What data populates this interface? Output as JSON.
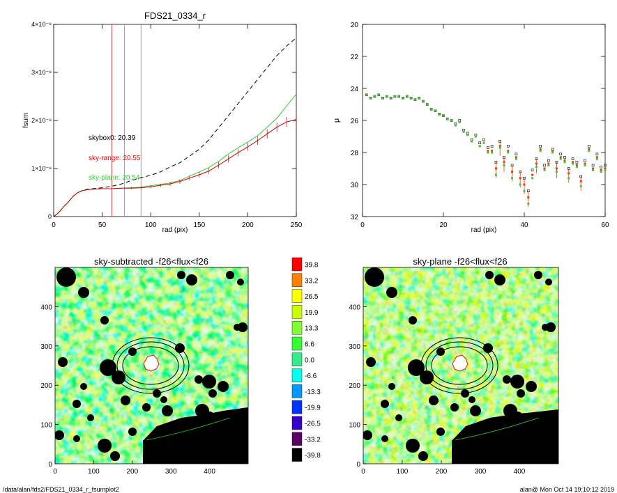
{
  "footer": {
    "path": "/data/alan/fds2/FDS21_0334_r_fsumplot2",
    "user_date": "alan@  Mon Oct 14 19:10:12 2019"
  },
  "chart_data": [
    {
      "type": "line",
      "title": "FDS21_0334_r",
      "xlabel": "rad (pix)",
      "ylabel": "fsum",
      "xlim": [
        0,
        250
      ],
      "ylim": [
        0,
        4e-08
      ],
      "xticks": [
        "0",
        "50",
        "100",
        "150",
        "200",
        "250"
      ],
      "yticks": [
        "0",
        "1×10⁻⁸",
        "2×10⁻⁸",
        "3×10⁻⁸",
        "4×10⁻⁸"
      ],
      "vlines": [
        {
          "x": 60,
          "color": "#ff0000"
        },
        {
          "x": 73,
          "color": "#8888aa"
        },
        {
          "x": 90,
          "color": "#888888"
        }
      ],
      "annotations": [
        {
          "text": "skybox0: 20.39",
          "color": "#000000"
        },
        {
          "text": "sky-range: 20.55",
          "color": "#ff0000"
        },
        {
          "text": "sky-plane: 20.54",
          "color": "#33cc33"
        }
      ],
      "x": [
        0,
        5,
        10,
        15,
        20,
        25,
        30,
        35,
        40,
        50,
        60,
        70,
        80,
        90,
        100,
        110,
        120,
        130,
        140,
        150,
        160,
        170,
        180,
        190,
        200,
        210,
        220,
        230,
        240,
        250
      ],
      "series": [
        {
          "color": "#000000",
          "dash": true,
          "values": [
            0,
            0.08,
            0.2,
            0.3,
            0.42,
            0.5,
            0.55,
            0.57,
            0.58,
            0.6,
            0.63,
            0.68,
            0.75,
            0.81,
            0.86,
            0.93,
            1.03,
            1.12,
            1.26,
            1.4,
            1.6,
            1.85,
            2.1,
            2.35,
            2.6,
            2.85,
            3.1,
            3.35,
            3.55,
            3.72
          ]
        },
        {
          "color": "#33cc33",
          "dash": false,
          "values": [
            0,
            0.08,
            0.2,
            0.3,
            0.42,
            0.5,
            0.54,
            0.56,
            0.57,
            0.58,
            0.58,
            0.59,
            0.6,
            0.61,
            0.64,
            0.67,
            0.7,
            0.75,
            0.84,
            0.93,
            1.02,
            1.15,
            1.3,
            1.43,
            1.55,
            1.68,
            1.86,
            2.05,
            2.3,
            2.55
          ]
        },
        {
          "color": "#cc0000",
          "dash": false,
          "values": [
            0,
            0.08,
            0.2,
            0.3,
            0.42,
            0.5,
            0.54,
            0.56,
            0.57,
            0.58,
            0.58,
            0.59,
            0.59,
            0.6,
            0.62,
            0.65,
            0.68,
            0.73,
            0.8,
            0.87,
            0.95,
            1.07,
            1.2,
            1.33,
            1.45,
            1.58,
            1.72,
            1.86,
            1.97,
            2.02
          ]
        }
      ]
    },
    {
      "type": "scatter",
      "xlabel": "rad (pix)",
      "ylabel": "μ",
      "xlim": [
        0,
        60
      ],
      "ylim": [
        32,
        20
      ],
      "xticks": [
        "0",
        "20",
        "40",
        "60"
      ],
      "yticks": [
        "20",
        "22",
        "24",
        "26",
        "28",
        "30",
        "32"
      ],
      "x": [
        1,
        2,
        3,
        4,
        5,
        6,
        7,
        8,
        9,
        10,
        11,
        12,
        13,
        14,
        15,
        16,
        17,
        18,
        19,
        20,
        21,
        22,
        23,
        24,
        25,
        26,
        27,
        28,
        29,
        30,
        31,
        32,
        33,
        34,
        35,
        36,
        37,
        38,
        39,
        40,
        41,
        42,
        43,
        44,
        45,
        46,
        47,
        48,
        49,
        50,
        51,
        52,
        53,
        54,
        55,
        56,
        57,
        58,
        59,
        60
      ],
      "series": [
        {
          "name": "black",
          "color": "#000000",
          "values": [
            24.4,
            24.6,
            24.5,
            24.4,
            24.6,
            24.5,
            24.6,
            24.5,
            24.5,
            24.6,
            24.5,
            24.6,
            24.7,
            24.6,
            24.8,
            25,
            25.3,
            25.4,
            25.6,
            25.7,
            25.9,
            26,
            26.2,
            26,
            26.6,
            26.8,
            27.2,
            26.9,
            27.4,
            27.2,
            27.7,
            27.6,
            28.6,
            27.3,
            28.3,
            27.6,
            28.8,
            28.1,
            29.2,
            29.6,
            30.4,
            29.1,
            28.4,
            27.6,
            28.8,
            28.5,
            27.8,
            28.6,
            28.1,
            28.3,
            29,
            28.4,
            28.6,
            29.5,
            28.5,
            27.6,
            28.8,
            28.1,
            28.9,
            28.8
          ]
        },
        {
          "name": "red",
          "color": "#ff3300",
          "values": [
            24.4,
            24.6,
            24.5,
            24.4,
            24.6,
            24.5,
            24.6,
            24.5,
            24.5,
            24.6,
            24.5,
            24.6,
            24.7,
            24.6,
            24.8,
            25,
            25.3,
            25.4,
            25.6,
            25.7,
            25.9,
            26,
            26.3,
            26.1,
            26.7,
            26.9,
            27.3,
            27,
            27.6,
            27.4,
            27.9,
            27.9,
            29,
            27.6,
            28.6,
            27.9,
            29.2,
            28.3,
            29.6,
            30,
            30.8,
            29.4,
            28.7,
            27.8,
            29,
            28.7,
            27.9,
            29,
            28.3,
            28.5,
            29.3,
            28.6,
            28.8,
            29.8,
            28.7,
            27.8,
            29,
            28.3,
            29.1,
            29
          ]
        },
        {
          "name": "green",
          "color": "#33cc33",
          "values": [
            24.4,
            24.6,
            24.5,
            24.4,
            24.6,
            24.5,
            24.6,
            24.5,
            24.5,
            24.6,
            24.5,
            24.6,
            24.7,
            24.6,
            24.8,
            25,
            25.3,
            25.4,
            25.6,
            25.7,
            25.9,
            26,
            26.3,
            26.1,
            26.7,
            26.9,
            27.3,
            27,
            27.6,
            27.4,
            28,
            28,
            29.4,
            27.7,
            28.8,
            28,
            29.6,
            28.4,
            30,
            30.4,
            31.2,
            29.6,
            28.9,
            27.9,
            29.1,
            28.8,
            28,
            29.2,
            28.4,
            28.6,
            29.6,
            28.7,
            28.9,
            30.1,
            28.8,
            27.9,
            29.1,
            28.4,
            29.2,
            29.1
          ]
        }
      ]
    },
    {
      "type": "heatmap",
      "title": "sky-subtracted -f26<flux<f26",
      "xlim": [
        0,
        500
      ],
      "ylim": [
        0,
        500
      ],
      "xticks": [
        "0",
        "100",
        "200",
        "300",
        "400"
      ],
      "yticks": [
        "0",
        "100",
        "200",
        "300",
        "400"
      ]
    },
    {
      "type": "heatmap",
      "title": "sky-plane -f26<flux<f26",
      "xlim": [
        0,
        500
      ],
      "ylim": [
        0,
        500
      ],
      "xticks": [
        "0",
        "100",
        "200",
        "300",
        "400"
      ],
      "yticks": [
        "0",
        "100",
        "200",
        "300",
        "400"
      ]
    },
    {
      "type": "table",
      "colorbar": [
        {
          "label": "39.8",
          "color": "#ff0000"
        },
        {
          "label": "33.2",
          "color": "#ff8000"
        },
        {
          "label": "26.5",
          "color": "#ffff00"
        },
        {
          "label": "19.9",
          "color": "#c8ff00"
        },
        {
          "label": "13.3",
          "color": "#80ff30"
        },
        {
          "label": "6.6",
          "color": "#33ff33"
        },
        {
          "label": "0.0",
          "color": "#33ee88"
        },
        {
          "label": "-6.6",
          "color": "#00ffee"
        },
        {
          "label": "-13.3",
          "color": "#0099ff"
        },
        {
          "label": "-19.9",
          "color": "#0033ff"
        },
        {
          "label": "-26.5",
          "color": "#3300cc"
        },
        {
          "label": "-33.2",
          "color": "#5a0066"
        },
        {
          "label": "-39.8",
          "color": "#000000"
        }
      ]
    }
  ]
}
